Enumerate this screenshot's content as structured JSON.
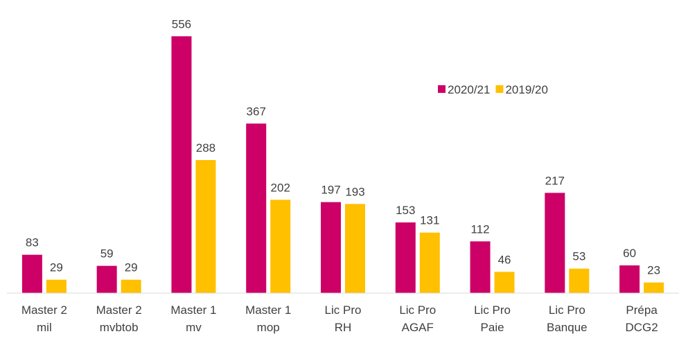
{
  "chart_data": {
    "type": "bar",
    "categories": [
      [
        "Master 2",
        "mil"
      ],
      [
        "Master 2",
        "mvbtob"
      ],
      [
        "Master 1",
        "mv"
      ],
      [
        "Master 1",
        "mop"
      ],
      [
        "Lic Pro",
        "RH"
      ],
      [
        "Lic Pro",
        "AGAF"
      ],
      [
        "Lic Pro",
        "Paie"
      ],
      [
        "Lic Pro",
        "Banque"
      ],
      [
        "Prépa",
        "DCG2"
      ]
    ],
    "series": [
      {
        "name": "2020/21",
        "color": "#cc0066",
        "values": [
          83,
          59,
          556,
          367,
          197,
          153,
          112,
          217,
          60
        ]
      },
      {
        "name": "2019/20",
        "color": "#ffc000",
        "values": [
          29,
          29,
          288,
          202,
          193,
          131,
          46,
          53,
          23
        ]
      }
    ],
    "ylim": [
      0,
      600
    ]
  }
}
